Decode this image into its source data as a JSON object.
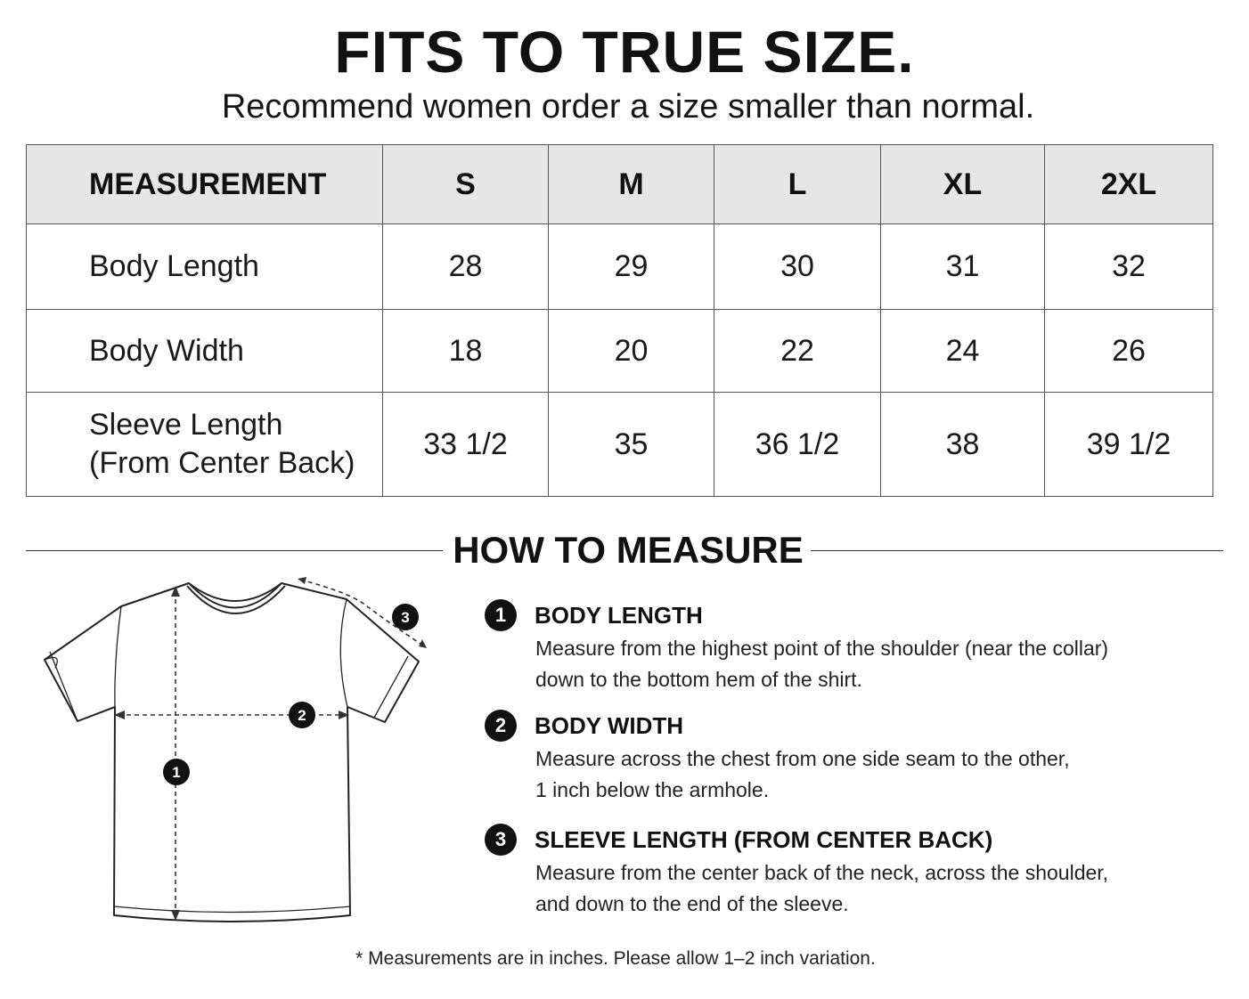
{
  "header": {
    "title": "FITS TO TRUE SIZE.",
    "subtitle": "Recommend women order a size smaller than normal."
  },
  "size_table": {
    "columns": [
      "MEASUREMENT",
      "S",
      "M",
      "L",
      "XL",
      "2XL"
    ],
    "rows": [
      {
        "label": "Body Length",
        "values": [
          "28",
          "29",
          "30",
          "31",
          "32"
        ]
      },
      {
        "label": "Body Width",
        "values": [
          "18",
          "20",
          "22",
          "24",
          "26"
        ]
      },
      {
        "label": "Sleeve Length\n(From Center Back)",
        "values": [
          "33 1/2",
          "35",
          "36 1/2",
          "38",
          "39 1/2"
        ]
      }
    ]
  },
  "how_to_measure": {
    "title": "HOW TO MEASURE",
    "diagram_markers": [
      "1",
      "2",
      "3"
    ],
    "steps": [
      {
        "number": "1",
        "heading": "BODY LENGTH",
        "description": "Measure from the highest point of the shoulder (near the collar)\ndown to the bottom hem of the shirt."
      },
      {
        "number": "2",
        "heading": "BODY WIDTH",
        "description": "Measure across the chest from one side seam to the other,\n1 inch below the armhole."
      },
      {
        "number": "3",
        "heading": "SLEEVE LENGTH (FROM CENTER BACK)",
        "description": "Measure from the center back of the neck, across the shoulder,\nand down to the end of the sleeve."
      }
    ]
  },
  "footnote": "* Measurements are in inches. Please allow 1–2 inch variation."
}
